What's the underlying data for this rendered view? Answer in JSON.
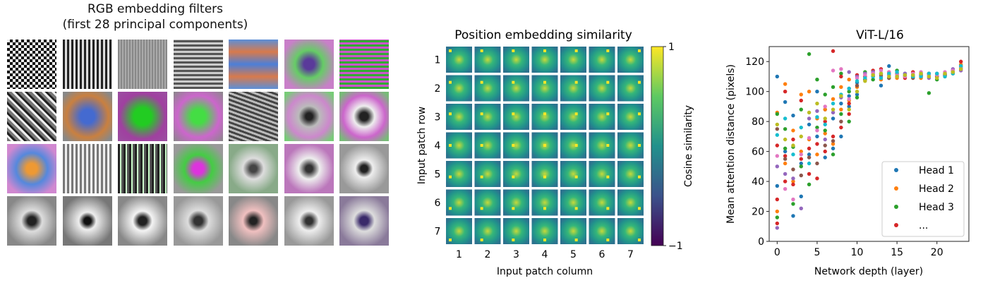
{
  "panel1": {
    "title_line1": "RGB embedding filters",
    "title_line2": "(first 28 principal components)",
    "rows": 4,
    "cols": 7
  },
  "panel2": {
    "title": "Position embedding similarity",
    "xlabel": "Input patch column",
    "ylabel": "Input patch row",
    "ticks": [
      "1",
      "2",
      "3",
      "4",
      "5",
      "6",
      "7"
    ],
    "colorbar": {
      "label": "Cosine similarity",
      "max_label": "1",
      "min_label": "−1"
    }
  },
  "chart_data": {
    "type": "scatter",
    "title": "ViT-L/16",
    "xlabel": "Network depth (layer)",
    "ylabel": "Mean attention distance (pixels)",
    "xlim": [
      -1,
      24
    ],
    "ylim": [
      0,
      130
    ],
    "xticks": [
      0,
      5,
      10,
      15,
      20
    ],
    "yticks": [
      0,
      20,
      40,
      60,
      80,
      100,
      120
    ],
    "legend_position": "lower-right",
    "legend": [
      "Head 1",
      "Head 2",
      "Head 3",
      "..."
    ],
    "series": [
      {
        "name": "Head 1",
        "color": "#1f77b4",
        "points": [
          [
            0,
            110
          ],
          [
            0,
            37
          ],
          [
            1,
            93
          ],
          [
            1,
            60
          ],
          [
            2,
            84
          ],
          [
            2,
            17
          ],
          [
            3,
            52
          ],
          [
            3,
            30
          ],
          [
            4,
            78
          ],
          [
            4,
            58
          ],
          [
            5,
            70
          ],
          [
            5,
            100
          ],
          [
            6,
            56
          ],
          [
            6,
            88
          ],
          [
            7,
            82
          ],
          [
            7,
            62
          ],
          [
            8,
            92
          ],
          [
            8,
            70
          ],
          [
            9,
            97
          ],
          [
            9,
            90
          ],
          [
            10,
            106
          ],
          [
            10,
            98
          ],
          [
            11,
            108
          ],
          [
            12,
            112
          ],
          [
            13,
            104
          ],
          [
            14,
            117
          ],
          [
            15,
            110
          ],
          [
            16,
            112
          ],
          [
            17,
            110
          ],
          [
            18,
            110
          ],
          [
            19,
            111
          ],
          [
            20,
            110
          ],
          [
            21,
            111
          ],
          [
            22,
            113
          ],
          [
            23,
            116
          ]
        ]
      },
      {
        "name": "Head 2",
        "color": "#ff7f0e",
        "points": [
          [
            0,
            86
          ],
          [
            0,
            20
          ],
          [
            1,
            105
          ],
          [
            1,
            52
          ],
          [
            2,
            74
          ],
          [
            2,
            40
          ],
          [
            3,
            98
          ],
          [
            3,
            60
          ],
          [
            4,
            100
          ],
          [
            4,
            68
          ],
          [
            5,
            82
          ],
          [
            5,
            58
          ],
          [
            6,
            88
          ],
          [
            6,
            72
          ],
          [
            7,
            95
          ],
          [
            7,
            65
          ],
          [
            8,
            103
          ],
          [
            8,
            88
          ],
          [
            9,
            108
          ],
          [
            9,
            94
          ],
          [
            10,
            103
          ],
          [
            11,
            110
          ],
          [
            12,
            111
          ],
          [
            13,
            108
          ],
          [
            14,
            112
          ],
          [
            15,
            109
          ],
          [
            16,
            110
          ],
          [
            17,
            111
          ],
          [
            18,
            109
          ],
          [
            19,
            110
          ],
          [
            20,
            111
          ],
          [
            21,
            110
          ],
          [
            22,
            113
          ],
          [
            23,
            118
          ]
        ]
      },
      {
        "name": "Head 3",
        "color": "#2ca02c",
        "points": [
          [
            0,
            85
          ],
          [
            0,
            16
          ],
          [
            1,
            75
          ],
          [
            1,
            62
          ],
          [
            2,
            63
          ],
          [
            2,
            25
          ],
          [
            3,
            50
          ],
          [
            3,
            88
          ],
          [
            4,
            125
          ],
          [
            4,
            38
          ],
          [
            5,
            76
          ],
          [
            5,
            108
          ],
          [
            6,
            98
          ],
          [
            6,
            74
          ],
          [
            7,
            103
          ],
          [
            7,
            58
          ],
          [
            8,
            112
          ],
          [
            8,
            85
          ],
          [
            9,
            100
          ],
          [
            9,
            80
          ],
          [
            10,
            96
          ],
          [
            11,
            113
          ],
          [
            12,
            108
          ],
          [
            13,
            112
          ],
          [
            14,
            109
          ],
          [
            15,
            114
          ],
          [
            16,
            111
          ],
          [
            17,
            110
          ],
          [
            18,
            112
          ],
          [
            19,
            99
          ],
          [
            20,
            108
          ],
          [
            21,
            111
          ],
          [
            22,
            114
          ],
          [
            23,
            117
          ]
        ]
      },
      {
        "name": "...",
        "color": "#d62728",
        "points": [
          [
            0,
            64
          ],
          [
            0,
            28
          ],
          [
            0,
            12
          ],
          [
            1,
            100
          ],
          [
            1,
            57
          ],
          [
            1,
            40
          ],
          [
            2,
            68
          ],
          [
            2,
            38
          ],
          [
            3,
            94
          ],
          [
            3,
            55
          ],
          [
            4,
            62
          ],
          [
            4,
            45
          ],
          [
            5,
            65
          ],
          [
            5,
            42
          ],
          [
            6,
            80
          ],
          [
            6,
            60
          ],
          [
            7,
            127
          ],
          [
            7,
            70
          ],
          [
            8,
            110
          ],
          [
            8,
            76
          ],
          [
            9,
            92
          ],
          [
            9,
            85
          ],
          [
            10,
            111
          ],
          [
            11,
            110
          ],
          [
            12,
            114
          ],
          [
            13,
            115
          ],
          [
            14,
            113
          ],
          [
            15,
            111
          ],
          [
            16,
            109
          ],
          [
            17,
            113
          ],
          [
            18,
            110
          ],
          [
            19,
            112
          ],
          [
            20,
            110
          ],
          [
            21,
            112
          ],
          [
            22,
            114
          ],
          [
            23,
            120
          ]
        ]
      },
      {
        "name": "",
        "color": "#9467bd",
        "points": [
          [
            0,
            50
          ],
          [
            0,
            9
          ],
          [
            1,
            45
          ],
          [
            2,
            42
          ],
          [
            3,
            22
          ],
          [
            4,
            82
          ],
          [
            5,
            87
          ],
          [
            6,
            68
          ],
          [
            7,
            86
          ],
          [
            8,
            96
          ],
          [
            9,
            113
          ],
          [
            10,
            110
          ],
          [
            11,
            112
          ],
          [
            12,
            113
          ],
          [
            13,
            110
          ],
          [
            14,
            111
          ],
          [
            15,
            110
          ],
          [
            16,
            112
          ],
          [
            17,
            111
          ],
          [
            18,
            111
          ],
          [
            19,
            109
          ],
          [
            20,
            112
          ],
          [
            21,
            112
          ],
          [
            22,
            115
          ],
          [
            23,
            114
          ]
        ]
      },
      {
        "name": "",
        "color": "#8c564b",
        "points": [
          [
            0,
            75
          ],
          [
            1,
            55
          ],
          [
            2,
            48
          ],
          [
            3,
            44
          ],
          [
            4,
            56
          ],
          [
            5,
            52
          ],
          [
            6,
            64
          ],
          [
            7,
            67
          ],
          [
            8,
            80
          ],
          [
            9,
            102
          ],
          [
            10,
            104
          ],
          [
            11,
            108
          ],
          [
            12,
            110
          ],
          [
            13,
            111
          ],
          [
            14,
            109
          ],
          [
            15,
            112
          ],
          [
            16,
            110
          ],
          [
            17,
            109
          ],
          [
            18,
            111
          ],
          [
            19,
            112
          ],
          [
            20,
            110
          ],
          [
            21,
            111
          ],
          [
            22,
            112
          ],
          [
            23,
            115
          ]
        ]
      },
      {
        "name": "",
        "color": "#e377c2",
        "points": [
          [
            0,
            57
          ],
          [
            1,
            35
          ],
          [
            2,
            28
          ],
          [
            3,
            58
          ],
          [
            4,
            69
          ],
          [
            5,
            74
          ],
          [
            6,
            90
          ],
          [
            7,
            114
          ],
          [
            8,
            115
          ],
          [
            9,
            95
          ],
          [
            10,
            109
          ],
          [
            11,
            111
          ],
          [
            12,
            112
          ],
          [
            13,
            114
          ],
          [
            14,
            113
          ],
          [
            15,
            111
          ],
          [
            16,
            110
          ],
          [
            17,
            112
          ],
          [
            18,
            113
          ],
          [
            19,
            111
          ],
          [
            20,
            111
          ],
          [
            21,
            113
          ],
          [
            22,
            114
          ],
          [
            23,
            116
          ]
        ]
      },
      {
        "name": "",
        "color": "#17becf",
        "points": [
          [
            0,
            71
          ],
          [
            1,
            82
          ],
          [
            2,
            58
          ],
          [
            3,
            76
          ],
          [
            4,
            52
          ],
          [
            5,
            83
          ],
          [
            6,
            78
          ],
          [
            7,
            92
          ],
          [
            8,
            98
          ],
          [
            9,
            102
          ],
          [
            10,
            107
          ],
          [
            11,
            109
          ],
          [
            12,
            110
          ],
          [
            13,
            109
          ],
          [
            14,
            112
          ],
          [
            15,
            113
          ],
          [
            16,
            111
          ],
          [
            17,
            110
          ],
          [
            18,
            110
          ],
          [
            19,
            112
          ],
          [
            20,
            112
          ],
          [
            21,
            110
          ],
          [
            22,
            112
          ],
          [
            23,
            117
          ]
        ]
      },
      {
        "name": "",
        "color": "#bcbd22",
        "points": [
          [
            0,
            78
          ],
          [
            1,
            68
          ],
          [
            2,
            64
          ],
          [
            3,
            70
          ],
          [
            4,
            86
          ],
          [
            5,
            92
          ],
          [
            6,
            82
          ],
          [
            7,
            88
          ],
          [
            8,
            97
          ],
          [
            9,
            88
          ],
          [
            10,
            100
          ],
          [
            11,
            107
          ],
          [
            12,
            111
          ],
          [
            13,
            112
          ],
          [
            14,
            110
          ],
          [
            15,
            110
          ],
          [
            16,
            111
          ],
          [
            17,
            111
          ],
          [
            18,
            112
          ],
          [
            19,
            110
          ],
          [
            20,
            109
          ],
          [
            21,
            112
          ],
          [
            22,
            113
          ],
          [
            23,
            115
          ]
        ]
      }
    ]
  }
}
